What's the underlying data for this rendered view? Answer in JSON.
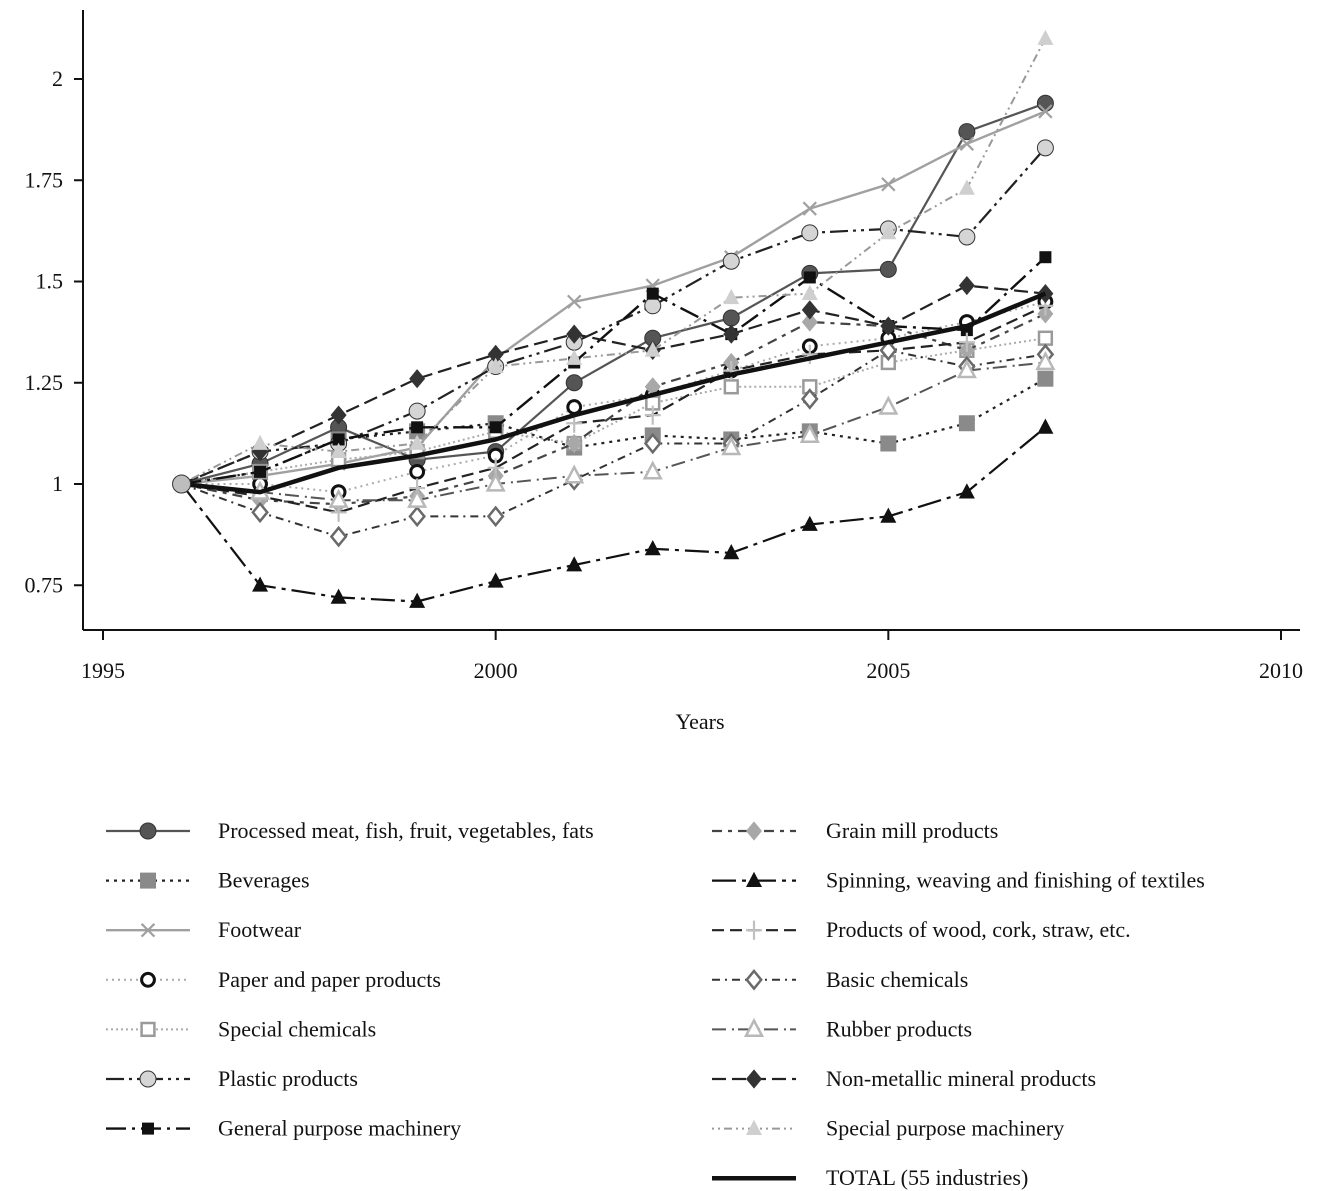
{
  "chart_data": {
    "type": "line",
    "title": "",
    "xlabel": "Years",
    "ylabel": "",
    "xlim": [
      1995,
      2010
    ],
    "ylim": [
      0.62,
      2.18
    ],
    "xticks": [
      1995,
      2000,
      2005,
      2010
    ],
    "yticks": [
      0.75,
      1,
      1.25,
      1.5,
      1.75,
      2
    ],
    "ytick_labels": [
      "0.75",
      "1",
      "1.25",
      "1.5",
      "1.75",
      "2"
    ],
    "grid": false,
    "legend_position": "bottom",
    "x": [
      1996,
      1997,
      1998,
      1999,
      2000,
      2001,
      2002,
      2003,
      2004,
      2005,
      2006,
      2007
    ],
    "series": [
      {
        "name": "Processed meat, fish, fruit, vegetables, fats",
        "color": "#555555",
        "dash": "",
        "marker": "circle",
        "width": 2.2,
        "values": [
          1.0,
          1.05,
          1.14,
          1.06,
          1.08,
          1.25,
          1.36,
          1.41,
          1.52,
          1.53,
          1.87,
          1.94
        ]
      },
      {
        "name": "Beverages",
        "color": "#222222",
        "dash": "3,5",
        "marker": "square",
        "markerColor": "#8a8a8a",
        "width": 2.2,
        "values": [
          1.0,
          1.03,
          1.11,
          1.13,
          1.15,
          1.09,
          1.12,
          1.11,
          1.13,
          1.1,
          1.15,
          1.26
        ]
      },
      {
        "name": "Footwear",
        "color": "#a0a0a0",
        "dash": "",
        "marker": "x",
        "width": 2.4,
        "values": [
          1.0,
          1.02,
          1.05,
          1.09,
          1.31,
          1.45,
          1.49,
          1.56,
          1.68,
          1.74,
          1.84,
          1.92
        ]
      },
      {
        "name": "Paper and paper products",
        "color": "#aaaaaa",
        "dash": "2,4",
        "marker": "ring",
        "markerColor": "#111111",
        "width": 2,
        "values": [
          1.0,
          1.0,
          0.98,
          1.03,
          1.07,
          1.19,
          1.22,
          1.28,
          1.34,
          1.36,
          1.4,
          1.45
        ]
      },
      {
        "name": "Special chemicals",
        "color": "#aaaaaa",
        "dash": "2,3",
        "marker": "open-square",
        "markerColor": "#9a9a9a",
        "width": 2,
        "values": [
          1.0,
          1.03,
          1.06,
          1.08,
          1.13,
          1.1,
          1.2,
          1.24,
          1.24,
          1.3,
          1.33,
          1.36
        ]
      },
      {
        "name": "Plastic products",
        "color": "#222222",
        "dash": "18,5,3,5,3,5",
        "marker": "circle",
        "markerColor": "#d5d5d5",
        "width": 2.2,
        "values": [
          1.0,
          1.08,
          1.1,
          1.18,
          1.29,
          1.35,
          1.44,
          1.55,
          1.62,
          1.63,
          1.61,
          1.83
        ]
      },
      {
        "name": "General purpose machinery",
        "color": "#111111",
        "dash": "20,6,3,6",
        "marker": "square-small",
        "markerColor": "#111111",
        "width": 2.4,
        "values": [
          1.0,
          1.03,
          1.11,
          1.14,
          1.14,
          1.3,
          1.47,
          1.37,
          1.51,
          1.39,
          1.38,
          1.56
        ]
      },
      {
        "name": "Grain mill products",
        "color": "#444444",
        "dash": "10,6,4,6",
        "marker": "diamond",
        "markerColor": "#a8a8a8",
        "width": 2.2,
        "values": [
          1.0,
          0.96,
          0.95,
          0.97,
          1.02,
          1.1,
          1.24,
          1.3,
          1.4,
          1.39,
          1.33,
          1.42
        ]
      },
      {
        "name": "Spinning, weaving and finishing of textiles",
        "color": "#111111",
        "dash": "24,6,4,6",
        "marker": "triangle",
        "markerColor": "#111111",
        "width": 2.2,
        "values": [
          1.0,
          0.75,
          0.72,
          0.71,
          0.76,
          0.8,
          0.84,
          0.83,
          0.9,
          0.92,
          0.98,
          1.14
        ]
      },
      {
        "name": "Products of wood, cork, straw, etc.",
        "color": "#222222",
        "dash": "12,6",
        "marker": "plus",
        "markerColor": "#c0c0c0",
        "width": 2.2,
        "values": [
          1.0,
          0.97,
          0.93,
          0.99,
          1.04,
          1.15,
          1.17,
          1.28,
          1.32,
          1.33,
          1.35,
          1.44
        ]
      },
      {
        "name": "Basic chemicals",
        "color": "#333333",
        "dash": "8,5,2,5",
        "marker": "open-diamond",
        "markerColor": "#6a6a6a",
        "width": 2,
        "values": [
          1.0,
          0.93,
          0.87,
          0.92,
          0.92,
          1.01,
          1.1,
          1.1,
          1.21,
          1.33,
          1.29,
          1.32
        ]
      },
      {
        "name": "Rubber products",
        "color": "#555555",
        "dash": "14,6,2,4",
        "marker": "open-triangle",
        "markerColor": "#b8b8b8",
        "width": 2,
        "values": [
          1.0,
          0.98,
          0.96,
          0.96,
          1.0,
          1.02,
          1.03,
          1.09,
          1.12,
          1.19,
          1.28,
          1.3
        ]
      },
      {
        "name": "Non-metallic mineral products",
        "color": "#222222",
        "dash": "14,6",
        "marker": "diamond",
        "markerColor": "#333333",
        "width": 2.2,
        "values": [
          1.0,
          1.08,
          1.17,
          1.26,
          1.32,
          1.37,
          1.33,
          1.37,
          1.43,
          1.39,
          1.49,
          1.47
        ]
      },
      {
        "name": "Special purpose machinery",
        "color": "#999999",
        "dash": "2,4,2,4,8,4",
        "marker": "triangle",
        "markerColor": "#cfcfcf",
        "width": 2,
        "values": [
          1.0,
          1.1,
          1.08,
          1.1,
          1.29,
          1.31,
          1.33,
          1.46,
          1.47,
          1.62,
          1.73,
          2.1
        ]
      },
      {
        "name": "TOTAL (55 industries)",
        "color": "#111111",
        "dash": "",
        "marker": "none",
        "width": 4.5,
        "values": [
          1.0,
          0.98,
          1.04,
          1.07,
          1.11,
          1.17,
          1.22,
          1.27,
          1.31,
          1.35,
          1.39,
          1.47
        ]
      }
    ]
  }
}
